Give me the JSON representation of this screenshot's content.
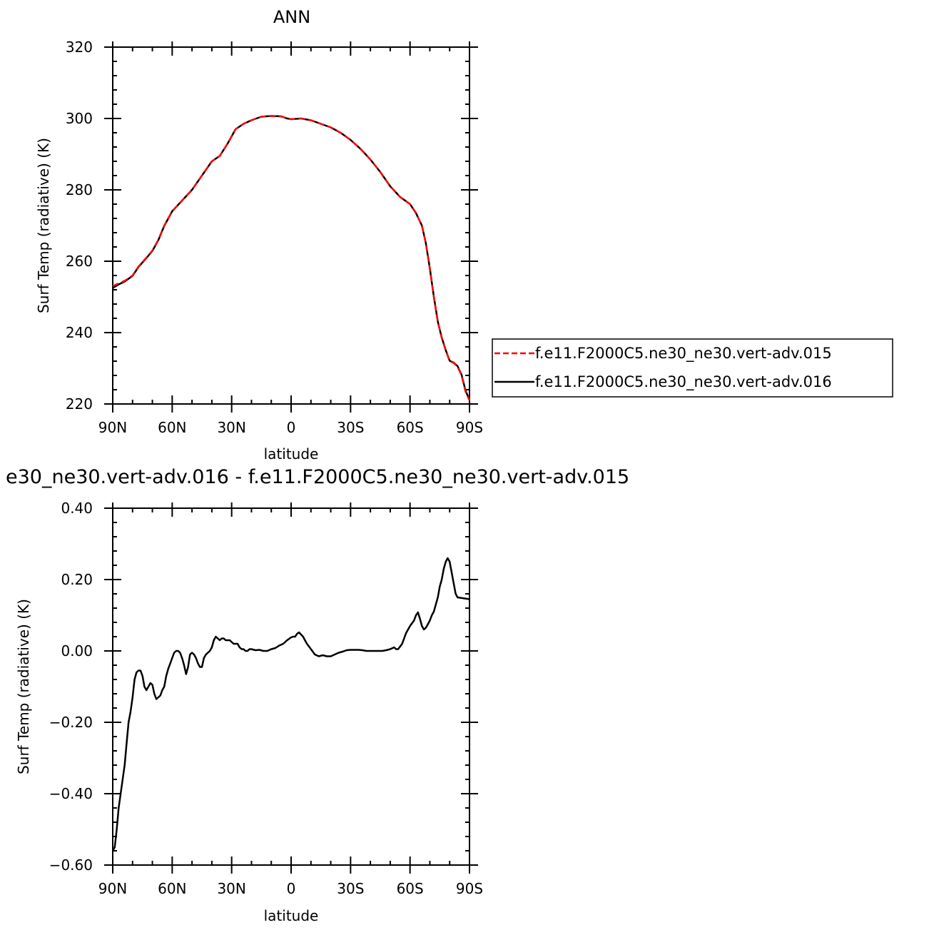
{
  "chart_data": [
    {
      "type": "line",
      "title": "ANN",
      "xlabel": "latitude",
      "ylabel": "Surf Temp (radiative) (K)",
      "xlim": [
        90,
        -90
      ],
      "ylim": [
        220,
        320
      ],
      "x_ticks": [
        90,
        60,
        30,
        0,
        -30,
        -60,
        -90
      ],
      "x_tick_labels": [
        "90N",
        "60N",
        "30N",
        "0",
        "30S",
        "60S",
        "90S"
      ],
      "y_ticks": [
        220,
        240,
        260,
        280,
        300,
        320
      ],
      "y_tick_labels": [
        "220",
        "240",
        "260",
        "280",
        "300",
        "320"
      ],
      "legend": {
        "placement": "right-bottom-outside",
        "entries": [
          "f.e11.F2000C5.ne30_ne30.vert-adv.015",
          "f.e11.F2000C5.ne30_ne30.vert-adv.016"
        ]
      },
      "series": [
        {
          "name": "f.e11.F2000C5.ne30_ne30.vert-adv.015",
          "color": "#ff0000",
          "dash": "dashed",
          "points": [
            [
              90,
              253
            ],
            [
              87,
              253.8
            ],
            [
              84,
              254.5
            ],
            [
              80,
              256
            ],
            [
              77,
              258.5
            ],
            [
              73,
              261
            ],
            [
              70,
              263
            ],
            [
              67,
              266
            ],
            [
              64,
              270
            ],
            [
              60,
              274
            ],
            [
              55,
              277
            ],
            [
              50,
              280
            ],
            [
              45,
              284
            ],
            [
              40,
              288
            ],
            [
              36,
              289.5
            ],
            [
              32,
              293
            ],
            [
              28,
              297
            ],
            [
              24,
              298.5
            ],
            [
              20,
              299.5
            ],
            [
              15,
              300.5
            ],
            [
              10,
              300.7
            ],
            [
              5,
              300.6
            ],
            [
              2,
              300
            ],
            [
              0,
              299.8
            ],
            [
              -5,
              300
            ],
            [
              -10,
              299.5
            ],
            [
              -15,
              298.5
            ],
            [
              -20,
              297.5
            ],
            [
              -25,
              296
            ],
            [
              -30,
              294
            ],
            [
              -35,
              291.5
            ],
            [
              -40,
              288.5
            ],
            [
              -45,
              285
            ],
            [
              -50,
              281
            ],
            [
              -55,
              278
            ],
            [
              -60,
              276
            ],
            [
              -63,
              273.5
            ],
            [
              -66,
              270
            ],
            [
              -68,
              265
            ],
            [
              -70,
              258
            ],
            [
              -72,
              250
            ],
            [
              -74,
              243
            ],
            [
              -76,
              238.5
            ],
            [
              -78,
              235
            ],
            [
              -80,
              232
            ],
            [
              -82,
              231.5
            ],
            [
              -84,
              230.5
            ],
            [
              -86,
              228
            ],
            [
              -88,
              223.5
            ],
            [
              -90,
              221
            ]
          ]
        },
        {
          "name": "f.e11.F2000C5.ne30_ne30.vert-adv.016",
          "color": "#000000",
          "dash": "solid",
          "points": [
            [
              90,
              252.5
            ],
            [
              87,
              253.5
            ],
            [
              84,
              254.3
            ],
            [
              80,
              255.9
            ],
            [
              77,
              258.4
            ],
            [
              73,
              260.9
            ],
            [
              70,
              262.9
            ],
            [
              67,
              265.9
            ],
            [
              64,
              269.9
            ],
            [
              60,
              274
            ],
            [
              55,
              277
            ],
            [
              50,
              280
            ],
            [
              45,
              284
            ],
            [
              40,
              288
            ],
            [
              36,
              289.5
            ],
            [
              32,
              293
            ],
            [
              28,
              297
            ],
            [
              24,
              298.5
            ],
            [
              20,
              299.5
            ],
            [
              15,
              300.5
            ],
            [
              10,
              300.7
            ],
            [
              5,
              300.6
            ],
            [
              2,
              300
            ],
            [
              0,
              299.8
            ],
            [
              -5,
              300
            ],
            [
              -10,
              299.5
            ],
            [
              -15,
              298.5
            ],
            [
              -20,
              297.5
            ],
            [
              -25,
              296
            ],
            [
              -30,
              294
            ],
            [
              -35,
              291.5
            ],
            [
              -40,
              288.5
            ],
            [
              -45,
              285
            ],
            [
              -50,
              281
            ],
            [
              -55,
              278
            ],
            [
              -60,
              276
            ],
            [
              -63,
              273.5
            ],
            [
              -66,
              270
            ],
            [
              -68,
              265
            ],
            [
              -70,
              258
            ],
            [
              -72,
              250.1
            ],
            [
              -74,
              243.1
            ],
            [
              -76,
              238.6
            ],
            [
              -78,
              235.1
            ],
            [
              -80,
              232.1
            ],
            [
              -82,
              231.6
            ],
            [
              -84,
              230.6
            ],
            [
              -86,
              228.2
            ],
            [
              -88,
              223.8
            ],
            [
              -90,
              221.1
            ]
          ]
        }
      ]
    },
    {
      "type": "line",
      "title": "e30_ne30.vert-adv.016 - f.e11.F2000C5.ne30_ne30.vert-adv.015",
      "xlabel": "latitude",
      "ylabel": "Surf Temp (radiative) (K)",
      "xlim": [
        90,
        -90
      ],
      "ylim": [
        -0.6,
        0.4
      ],
      "x_ticks": [
        90,
        60,
        30,
        0,
        -30,
        -60,
        -90
      ],
      "x_tick_labels": [
        "90N",
        "60N",
        "30N",
        "0",
        "30S",
        "60S",
        "90S"
      ],
      "y_ticks": [
        -0.6,
        -0.4,
        -0.2,
        0.0,
        0.2,
        0.4
      ],
      "y_tick_labels": [
        "−0.60",
        "−0.40",
        "−0.20",
        "0.00",
        "0.20",
        "0.40"
      ],
      "series": [
        {
          "color": "#000000",
          "dash": "solid",
          "points": [
            [
              90,
              -0.56
            ],
            [
              89,
              -0.55
            ],
            [
              88,
              -0.5
            ],
            [
              87,
              -0.44
            ],
            [
              86,
              -0.4
            ],
            [
              85,
              -0.36
            ],
            [
              84,
              -0.32
            ],
            [
              83,
              -0.26
            ],
            [
              82,
              -0.2
            ],
            [
              81,
              -0.17
            ],
            [
              80,
              -0.13
            ],
            [
              79,
              -0.08
            ],
            [
              78,
              -0.06
            ],
            [
              77,
              -0.055
            ],
            [
              76,
              -0.055
            ],
            [
              75,
              -0.07
            ],
            [
              74,
              -0.1
            ],
            [
              73,
              -0.11
            ],
            [
              72,
              -0.1
            ],
            [
              71,
              -0.09
            ],
            [
              70,
              -0.095
            ],
            [
              69,
              -0.12
            ],
            [
              68,
              -0.135
            ],
            [
              67,
              -0.13
            ],
            [
              66,
              -0.125
            ],
            [
              65,
              -0.11
            ],
            [
              64,
              -0.1
            ],
            [
              63,
              -0.07
            ],
            [
              62,
              -0.05
            ],
            [
              61,
              -0.035
            ],
            [
              60,
              -0.02
            ],
            [
              59,
              -0.005
            ],
            [
              58,
              0.0
            ],
            [
              57,
              0.0
            ],
            [
              56,
              -0.005
            ],
            [
              55,
              -0.02
            ],
            [
              54,
              -0.04
            ],
            [
              53,
              -0.065
            ],
            [
              52,
              -0.045
            ],
            [
              51,
              -0.01
            ],
            [
              50,
              -0.005
            ],
            [
              49,
              -0.01
            ],
            [
              48,
              -0.02
            ],
            [
              47,
              -0.035
            ],
            [
              46,
              -0.045
            ],
            [
              45,
              -0.045
            ],
            [
              44,
              -0.02
            ],
            [
              43,
              -0.01
            ],
            [
              42,
              -0.005
            ],
            [
              41,
              0.0
            ],
            [
              40,
              0.01
            ],
            [
              39,
              0.03
            ],
            [
              38,
              0.04
            ],
            [
              37,
              0.035
            ],
            [
              36,
              0.03
            ],
            [
              35,
              0.035
            ],
            [
              34,
              0.035
            ],
            [
              33,
              0.03
            ],
            [
              32,
              0.03
            ],
            [
              31,
              0.03
            ],
            [
              30,
              0.025
            ],
            [
              29,
              0.02
            ],
            [
              28,
              0.02
            ],
            [
              27,
              0.02
            ],
            [
              26,
              0.01
            ],
            [
              25,
              0.005
            ],
            [
              24,
              0.005
            ],
            [
              23,
              0.0
            ],
            [
              22,
              0.0
            ],
            [
              21,
              0.005
            ],
            [
              20,
              0.005
            ],
            [
              18,
              0.002
            ],
            [
              16,
              0.003
            ],
            [
              14,
              0.0
            ],
            [
              12,
              0.0
            ],
            [
              10,
              0.005
            ],
            [
              8,
              0.008
            ],
            [
              6,
              0.015
            ],
            [
              4,
              0.02
            ],
            [
              2,
              0.03
            ],
            [
              0,
              0.038
            ],
            [
              -1,
              0.04
            ],
            [
              -2,
              0.04
            ],
            [
              -3,
              0.048
            ],
            [
              -4,
              0.052
            ],
            [
              -5,
              0.046
            ],
            [
              -6,
              0.04
            ],
            [
              -7,
              0.03
            ],
            [
              -8,
              0.02
            ],
            [
              -10,
              0.005
            ],
            [
              -12,
              -0.01
            ],
            [
              -14,
              -0.015
            ],
            [
              -16,
              -0.012
            ],
            [
              -18,
              -0.015
            ],
            [
              -20,
              -0.015
            ],
            [
              -22,
              -0.01
            ],
            [
              -24,
              -0.005
            ],
            [
              -26,
              -0.002
            ],
            [
              -28,
              0.002
            ],
            [
              -30,
              0.003
            ],
            [
              -32,
              0.003
            ],
            [
              -34,
              0.003
            ],
            [
              -36,
              0.002
            ],
            [
              -38,
              0.0
            ],
            [
              -40,
              0.0
            ],
            [
              -42,
              0.0
            ],
            [
              -44,
              0.0
            ],
            [
              -46,
              0.0
            ],
            [
              -48,
              0.002
            ],
            [
              -50,
              0.005
            ],
            [
              -52,
              0.01
            ],
            [
              -53,
              0.005
            ],
            [
              -54,
              0.005
            ],
            [
              -56,
              0.02
            ],
            [
              -58,
              0.05
            ],
            [
              -60,
              0.07
            ],
            [
              -62,
              0.085
            ],
            [
              -63,
              0.1
            ],
            [
              -64,
              0.108
            ],
            [
              -65,
              0.09
            ],
            [
              -66,
              0.07
            ],
            [
              -67,
              0.06
            ],
            [
              -68,
              0.065
            ],
            [
              -69,
              0.075
            ],
            [
              -70,
              0.085
            ],
            [
              -71,
              0.1
            ],
            [
              -72,
              0.11
            ],
            [
              -73,
              0.13
            ],
            [
              -74,
              0.15
            ],
            [
              -75,
              0.18
            ],
            [
              -76,
              0.2
            ],
            [
              -77,
              0.23
            ],
            [
              -78,
              0.25
            ],
            [
              -79,
              0.26
            ],
            [
              -80,
              0.25
            ],
            [
              -81,
              0.22
            ],
            [
              -82,
              0.19
            ],
            [
              -83,
              0.16
            ],
            [
              -84,
              0.15
            ],
            [
              -90,
              0.145
            ]
          ]
        }
      ]
    }
  ]
}
